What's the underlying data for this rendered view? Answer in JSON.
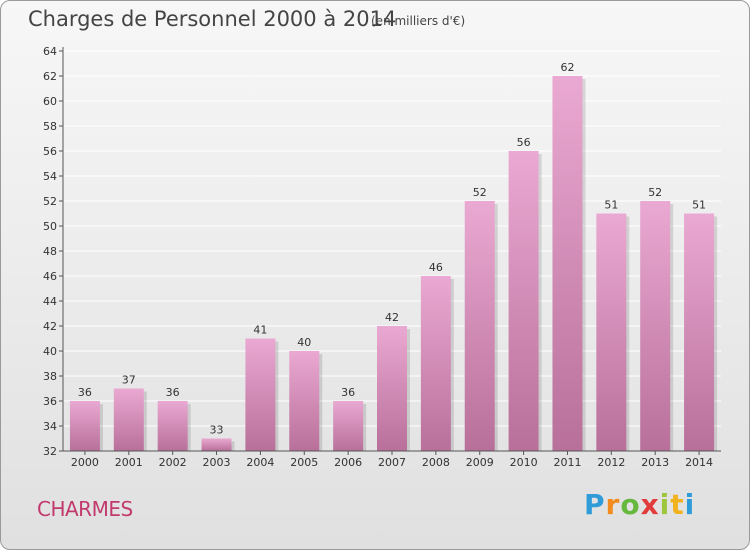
{
  "header": {
    "title": "Charges de Personnel 2000 à 2014",
    "subtitle": "(en milliers d'€)"
  },
  "footer": {
    "city": "CHARMES",
    "brand": {
      "letters": [
        "P",
        "r",
        "o",
        "x",
        "i",
        "t",
        "i"
      ],
      "colors": [
        "#2f9bd8",
        "#f28c1e",
        "#67b93e",
        "#e23b3b",
        "#9cc63b",
        "#f2b21e",
        "#2f9bd8"
      ]
    }
  },
  "colors": {
    "bar_top": "#eaa9d2",
    "bar_bottom": "#b8709a",
    "axis": "#555555",
    "grid": "#ffffff"
  },
  "chart_data": {
    "type": "bar",
    "title": "Charges de Personnel 2000 à 2014",
    "subtitle": "(en milliers d'€)",
    "xlabel": "",
    "ylabel": "",
    "categories": [
      "2000",
      "2001",
      "2002",
      "2003",
      "2004",
      "2005",
      "2006",
      "2007",
      "2008",
      "2009",
      "2010",
      "2011",
      "2012",
      "2013",
      "2014"
    ],
    "values": [
      36,
      37,
      36,
      33,
      41,
      40,
      36,
      42,
      46,
      52,
      56,
      62,
      51,
      52,
      51
    ],
    "ylim": [
      32,
      64
    ],
    "yticks": [
      32,
      34,
      36,
      38,
      40,
      42,
      44,
      46,
      48,
      50,
      52,
      54,
      56,
      58,
      60,
      62,
      64
    ],
    "grid": true,
    "data_labels": true,
    "legend": "none"
  }
}
